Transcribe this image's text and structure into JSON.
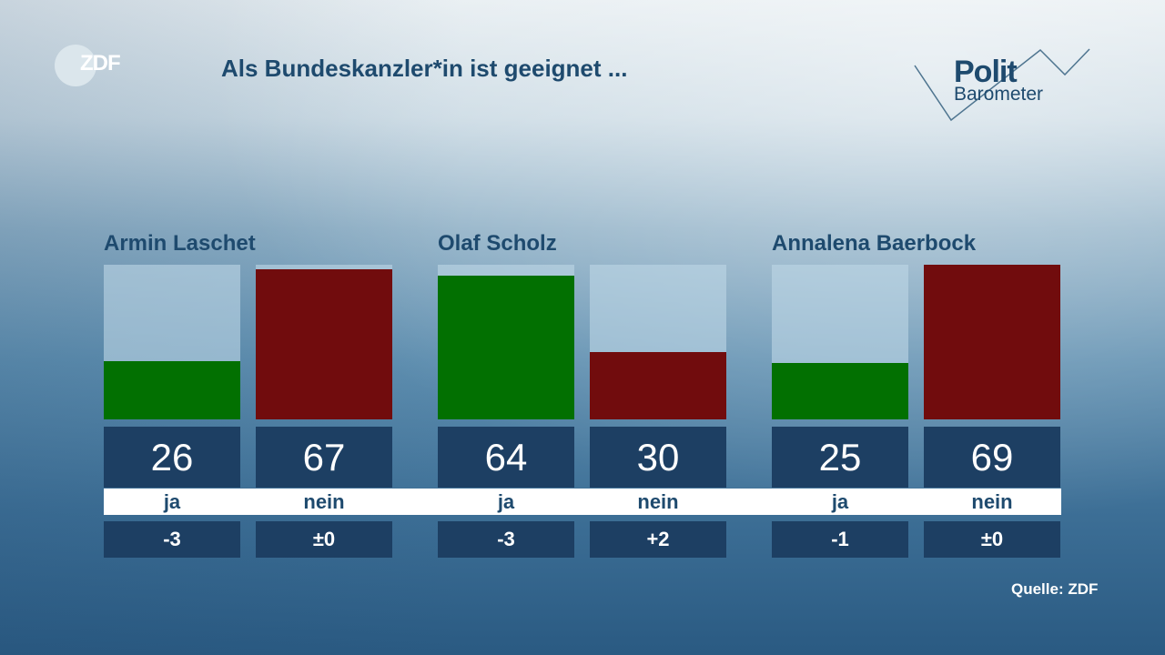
{
  "title": "Als Bundeskanzler*in ist geeignet ...",
  "logo_zdf": "ZDF",
  "logo_polit": "Polit",
  "logo_barometer": "Barometer",
  "source": "Quelle: ZDF",
  "colors": {
    "ja": "#027001",
    "nein": "#710c0d",
    "box": "#1d3f63",
    "text": "#1e4a6e"
  },
  "chart_data": {
    "type": "bar",
    "title": "Als Bundeskanzler*in ist geeignet ...",
    "ylim": [
      0,
      69
    ],
    "groups": [
      {
        "name": "Armin Laschet",
        "bars": [
          {
            "label": "ja",
            "value": 26,
            "change": "-3"
          },
          {
            "label": "nein",
            "value": 67,
            "change": "±0"
          }
        ]
      },
      {
        "name": "Olaf Scholz",
        "bars": [
          {
            "label": "ja",
            "value": 64,
            "change": "-3"
          },
          {
            "label": "nein",
            "value": 30,
            "change": "+2"
          }
        ]
      },
      {
        "name": "Annalena Baerbock",
        "bars": [
          {
            "label": "ja",
            "value": 25,
            "change": "-1"
          },
          {
            "label": "nein",
            "value": 69,
            "change": "±0"
          }
        ]
      }
    ]
  }
}
